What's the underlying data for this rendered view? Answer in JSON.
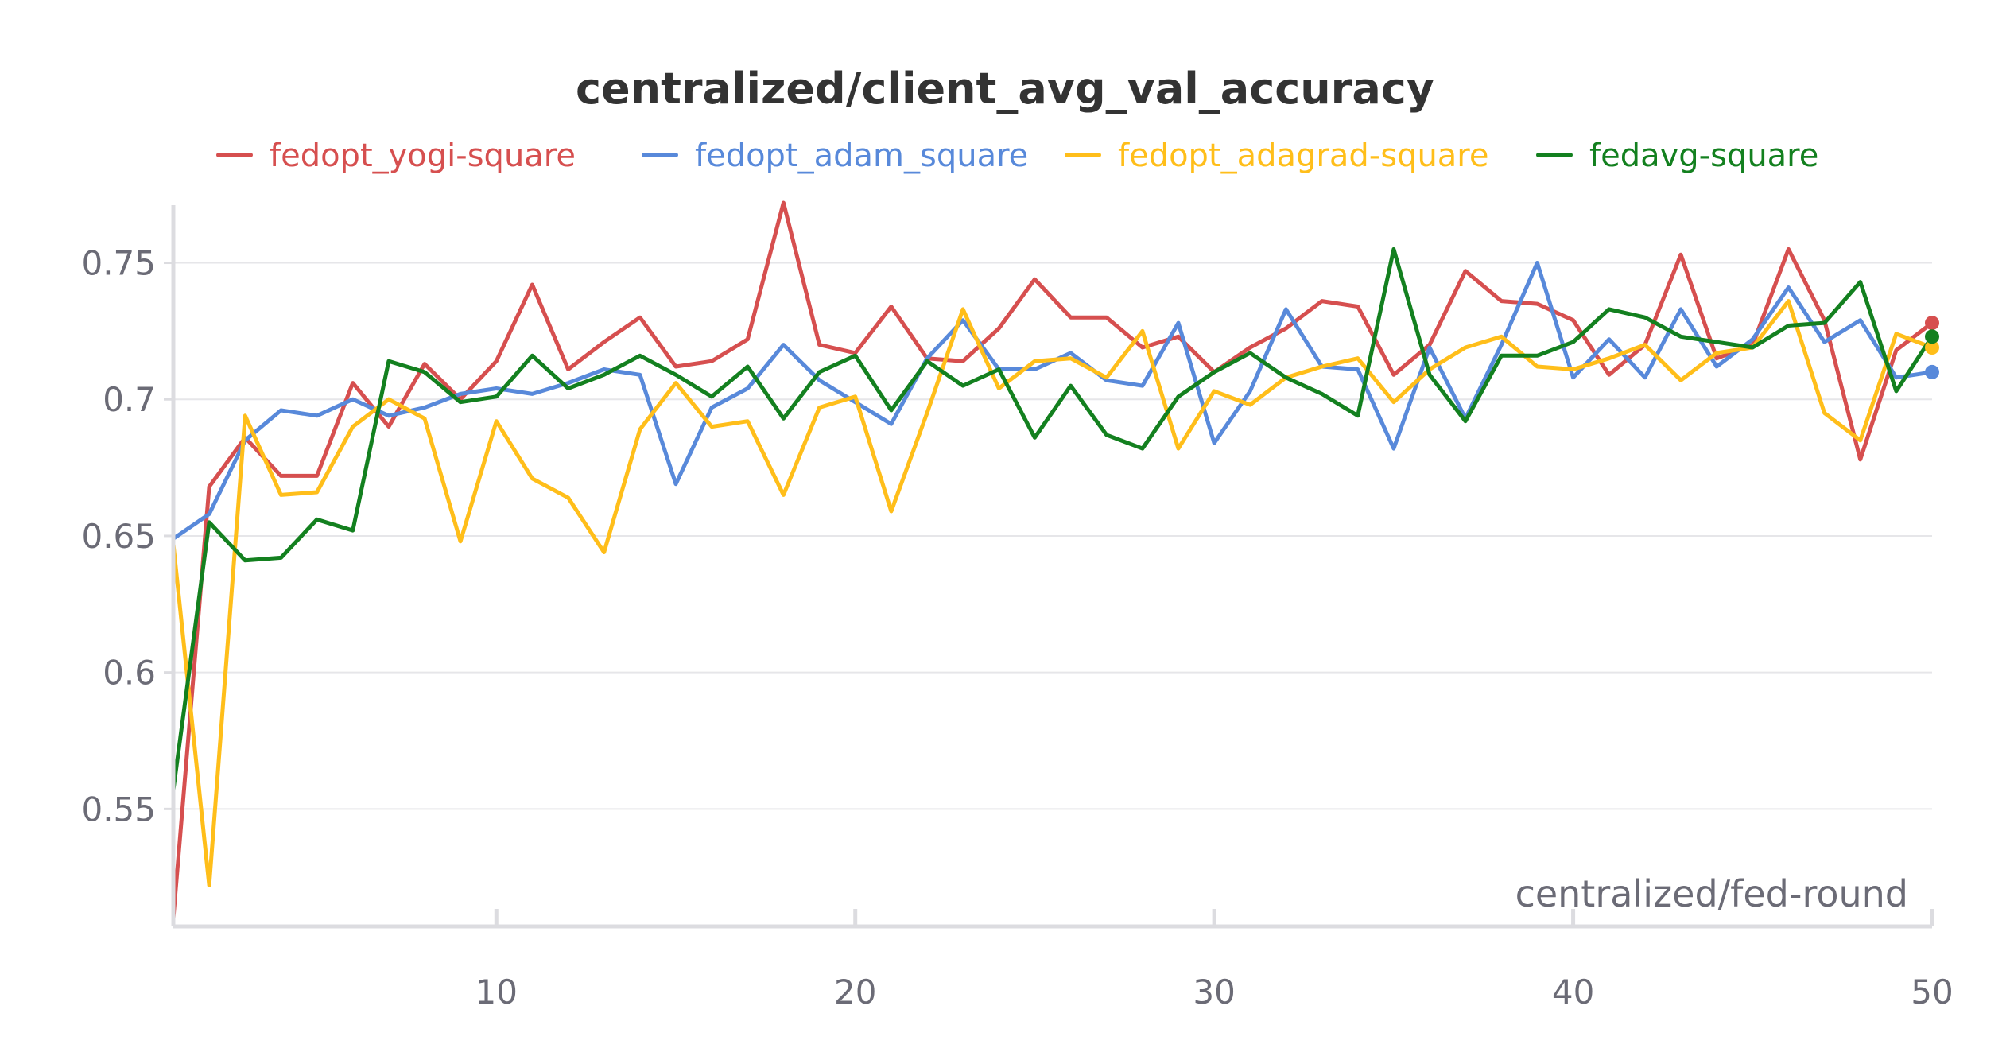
{
  "chart_data": {
    "type": "line",
    "title": "centralized/client_avg_val_accuracy",
    "xlabel": "centralized/fed-round",
    "ylabel": "",
    "xlim": [
      1,
      50
    ],
    "ylim": [
      0.507,
      0.772
    ],
    "xticks": [
      10,
      20,
      30,
      40,
      50
    ],
    "yticks": [
      0.55,
      0.6,
      0.65,
      0.7,
      0.75
    ],
    "ytick_labels": [
      "0.55",
      "0.6",
      "0.65",
      "0.7",
      "0.75"
    ],
    "xtick_labels": [
      "10",
      "20",
      "30",
      "40",
      "50"
    ],
    "grid": true,
    "legend_position": "top-center",
    "x": [
      1,
      2,
      3,
      4,
      5,
      6,
      7,
      8,
      9,
      10,
      11,
      12,
      13,
      14,
      15,
      16,
      17,
      18,
      19,
      20,
      21,
      22,
      23,
      24,
      25,
      26,
      27,
      28,
      29,
      30,
      31,
      32,
      33,
      34,
      35,
      36,
      37,
      38,
      39,
      40,
      41,
      42,
      43,
      44,
      45,
      46,
      47,
      48,
      49,
      50
    ],
    "series": [
      {
        "name": "fedopt_yogi-square",
        "color": "#d64f4f",
        "values": [
          0.51,
          0.668,
          0.686,
          0.672,
          0.672,
          0.706,
          0.69,
          0.713,
          0.7,
          0.714,
          0.742,
          0.711,
          0.721,
          0.73,
          0.712,
          0.714,
          0.722,
          0.772,
          0.72,
          0.717,
          0.734,
          0.715,
          0.714,
          0.726,
          0.744,
          0.73,
          0.73,
          0.719,
          0.723,
          0.71,
          0.719,
          0.726,
          0.736,
          0.734,
          0.709,
          0.72,
          0.747,
          0.736,
          0.735,
          0.729,
          0.709,
          0.72,
          0.753,
          0.715,
          0.72,
          0.755,
          0.729,
          0.678,
          0.718,
          0.728
        ]
      },
      {
        "name": "fedopt_adam_square",
        "color": "#5889da",
        "values": [
          0.649,
          0.658,
          0.685,
          0.696,
          0.694,
          0.7,
          0.694,
          0.697,
          0.702,
          0.704,
          0.702,
          0.706,
          0.711,
          0.709,
          0.669,
          0.697,
          0.704,
          0.72,
          0.707,
          0.699,
          0.691,
          0.715,
          0.729,
          0.711,
          0.711,
          0.717,
          0.707,
          0.705,
          0.728,
          0.684,
          0.703,
          0.733,
          0.712,
          0.711,
          0.682,
          0.719,
          0.693,
          0.72,
          0.75,
          0.708,
          0.722,
          0.708,
          0.733,
          0.712,
          0.722,
          0.741,
          0.721,
          0.729,
          0.708,
          0.71
        ]
      },
      {
        "name": "fedopt_adagrad-square",
        "color": "#ffbe1a",
        "values": [
          0.647,
          0.522,
          0.694,
          0.665,
          0.666,
          0.69,
          0.7,
          0.693,
          0.648,
          0.692,
          0.671,
          0.664,
          0.644,
          0.689,
          0.706,
          0.69,
          0.692,
          0.665,
          0.697,
          0.701,
          0.659,
          0.695,
          0.733,
          0.704,
          0.714,
          0.715,
          0.708,
          0.725,
          0.682,
          0.703,
          0.698,
          0.708,
          0.712,
          0.715,
          0.699,
          0.711,
          0.719,
          0.723,
          0.712,
          0.711,
          0.715,
          0.72,
          0.707,
          0.717,
          0.719,
          0.736,
          0.695,
          0.685,
          0.724,
          0.719
        ]
      },
      {
        "name": "fedavg-square",
        "color": "#13801f",
        "values": [
          0.557,
          0.655,
          0.641,
          0.642,
          0.656,
          0.652,
          0.714,
          0.71,
          0.699,
          0.701,
          0.716,
          0.704,
          0.709,
          0.716,
          0.709,
          0.701,
          0.712,
          0.693,
          0.71,
          0.716,
          0.696,
          0.714,
          0.705,
          0.711,
          0.686,
          0.705,
          0.687,
          0.682,
          0.701,
          0.71,
          0.717,
          0.708,
          0.702,
          0.694,
          0.755,
          0.709,
          0.692,
          0.716,
          0.716,
          0.721,
          0.733,
          0.73,
          0.723,
          0.721,
          0.719,
          0.727,
          0.728,
          0.743,
          0.703,
          0.723
        ]
      }
    ]
  }
}
